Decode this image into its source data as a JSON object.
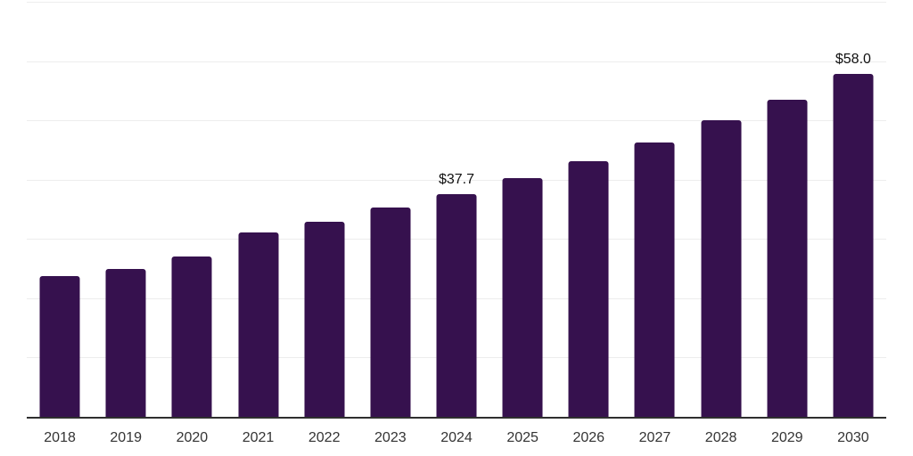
{
  "chart_data": {
    "type": "bar",
    "title": "",
    "xlabel": "",
    "ylabel": "",
    "categories": [
      "2018",
      "2019",
      "2020",
      "2021",
      "2022",
      "2023",
      "2024",
      "2025",
      "2026",
      "2027",
      "2028",
      "2029",
      "2030"
    ],
    "values": [
      23.9,
      25.1,
      27.2,
      31.2,
      33.0,
      35.4,
      37.7,
      40.4,
      43.3,
      46.4,
      50.2,
      53.6,
      58.0
    ],
    "value_labels": [
      "",
      "",
      "",
      "",
      "",
      "",
      "$37.7",
      "",
      "",
      "",
      "",
      "",
      "$58.0"
    ],
    "ylim": [
      0,
      70
    ],
    "gridline_step": 10,
    "grid": true,
    "legend_position": "none",
    "y_axis_tick_labels_visible": false,
    "colors": {
      "bar": "#36114e",
      "axis": "#2f2f2f",
      "gridline": "#ededed",
      "tick_label": "#333333",
      "value_label": "#111111",
      "background": "#ffffff"
    }
  }
}
